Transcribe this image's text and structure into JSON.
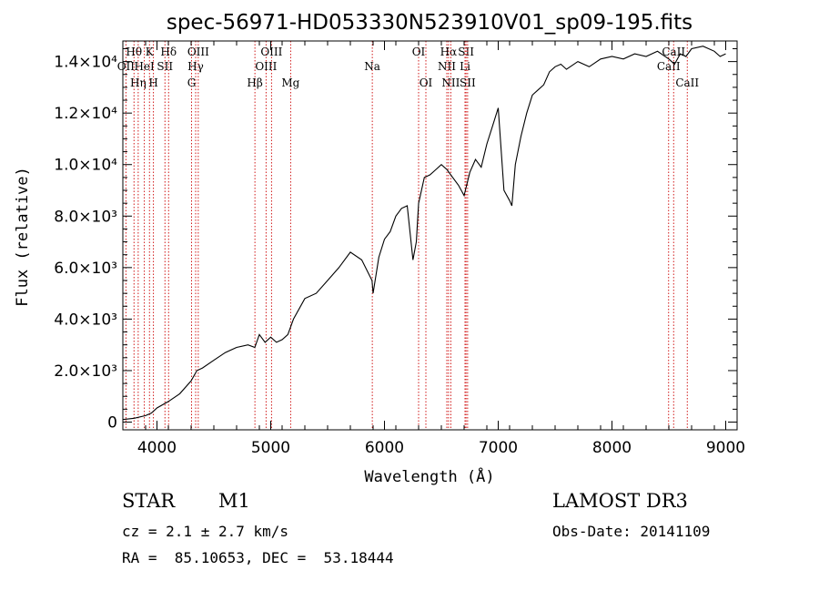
{
  "chart_data": {
    "type": "line",
    "title": "spec-56971-HD053330N523910V01_sp09-195.fits",
    "xlabel": "Wavelength (Å)",
    "ylabel": "Flux (relative)",
    "xlim": [
      3700,
      9100
    ],
    "ylim": [
      -300,
      14800
    ],
    "x_ticks": [
      {
        "value": 4000,
        "label": "4000"
      },
      {
        "value": 5000,
        "label": "5000"
      },
      {
        "value": 6000,
        "label": "6000"
      },
      {
        "value": 7000,
        "label": "7000"
      },
      {
        "value": 8000,
        "label": "8000"
      },
      {
        "value": 9000,
        "label": "9000"
      }
    ],
    "y_ticks": [
      {
        "value": 0,
        "label": "0"
      },
      {
        "value": 2000,
        "label": "2.0×10³"
      },
      {
        "value": 4000,
        "label": "4.0×10³"
      },
      {
        "value": 6000,
        "label": "6.0×10³"
      },
      {
        "value": 8000,
        "label": "8.0×10³"
      },
      {
        "value": 10000,
        "label": "1.0×10⁴"
      },
      {
        "value": 12000,
        "label": "1.2×10⁴"
      },
      {
        "value": 14000,
        "label": "1.4×10⁴"
      }
    ],
    "series": [
      {
        "name": "spectrum",
        "x": [
          3700,
          3800,
          3900,
          3950,
          4000,
          4100,
          4200,
          4300,
          4350,
          4400,
          4500,
          4600,
          4700,
          4800,
          4860,
          4900,
          4950,
          5000,
          5050,
          5100,
          5150,
          5200,
          5300,
          5400,
          5500,
          5600,
          5700,
          5800,
          5890,
          5900,
          5950,
          6000,
          6050,
          6100,
          6150,
          6200,
          6250,
          6280,
          6300,
          6350,
          6400,
          6450,
          6500,
          6550,
          6600,
          6650,
          6700,
          6750,
          6800,
          6850,
          6900,
          6950,
          7000,
          7050,
          7100,
          7120,
          7150,
          7200,
          7250,
          7300,
          7350,
          7400,
          7450,
          7500,
          7550,
          7600,
          7700,
          7800,
          7900,
          8000,
          8100,
          8200,
          8300,
          8400,
          8500,
          8550,
          8600,
          8650,
          8700,
          8800,
          8900,
          8950,
          9000
        ],
        "y": [
          100,
          150,
          250,
          350,
          550,
          800,
          1100,
          1600,
          2000,
          2100,
          2400,
          2700,
          2900,
          3000,
          2900,
          3400,
          3100,
          3300,
          3100,
          3200,
          3400,
          4000,
          4800,
          5000,
          5500,
          6000,
          6600,
          6300,
          5500,
          5000,
          6400,
          7100,
          7400,
          8000,
          8300,
          8400,
          6300,
          7000,
          8500,
          9500,
          9600,
          9800,
          10000,
          9800,
          9500,
          9200,
          8800,
          9700,
          10200,
          9900,
          10800,
          11500,
          12200,
          9000,
          8600,
          8400,
          10000,
          11100,
          12000,
          12700,
          12900,
          13100,
          13600,
          13800,
          13900,
          13700,
          14000,
          13800,
          14100,
          14200,
          14100,
          14300,
          14200,
          14400,
          14100,
          13900,
          14300,
          14200,
          14500,
          14600,
          14400,
          14200,
          14300
        ]
      }
    ],
    "line_markers": [
      {
        "wavelength": 3727,
        "label": "OII",
        "row": 2
      },
      {
        "wavelength": 3798,
        "label": "Hθ",
        "row": 1
      },
      {
        "wavelength": 3835,
        "label": "Hη",
        "row": 3
      },
      {
        "wavelength": 3889,
        "label": "HeI",
        "row": 2
      },
      {
        "wavelength": 3934,
        "label": "K",
        "row": 1
      },
      {
        "wavelength": 3969,
        "label": "H",
        "row": 3
      },
      {
        "wavelength": 4070,
        "label": "SII",
        "row": 2
      },
      {
        "wavelength": 4102,
        "label": "Hδ",
        "row": 1
      },
      {
        "wavelength": 4304,
        "label": "G",
        "row": 3
      },
      {
        "wavelength": 4340,
        "label": "Hγ",
        "row": 2
      },
      {
        "wavelength": 4363,
        "label": "OIII",
        "row": 1
      },
      {
        "wavelength": 4861,
        "label": "Hβ",
        "row": 3
      },
      {
        "wavelength": 4959,
        "label": "OIII",
        "row": 2
      },
      {
        "wavelength": 5007,
        "label": "OIII",
        "row": 1
      },
      {
        "wavelength": 5175,
        "label": "Mg",
        "row": 3
      },
      {
        "wavelength": 5893,
        "label": "Na",
        "row": 2
      },
      {
        "wavelength": 6300,
        "label": "OI",
        "row": 1
      },
      {
        "wavelength": 6364,
        "label": "OI",
        "row": 3
      },
      {
        "wavelength": 6548,
        "label": "NII",
        "row": 2
      },
      {
        "wavelength": 6563,
        "label": "Hα",
        "row": 1
      },
      {
        "wavelength": 6583,
        "label": "NII",
        "row": 3
      },
      {
        "wavelength": 6708,
        "label": "Li",
        "row": 2
      },
      {
        "wavelength": 6717,
        "label": "SII",
        "row": 1
      },
      {
        "wavelength": 6731,
        "label": "SII",
        "row": 3
      },
      {
        "wavelength": 8498,
        "label": "CaII",
        "row": 2
      },
      {
        "wavelength": 8542,
        "label": "CaII",
        "row": 1
      },
      {
        "wavelength": 8662,
        "label": "CaII",
        "row": 3
      }
    ],
    "marker_color": "#cc0000"
  },
  "info": {
    "class": "STAR",
    "subclass": "M1",
    "survey": "LAMOST DR3",
    "cz": "cz = 2.1 ± 2.7 km/s",
    "obs_date": "Obs-Date: 20141109",
    "coords": "RA =  85.10653, DEC =  53.18444"
  }
}
